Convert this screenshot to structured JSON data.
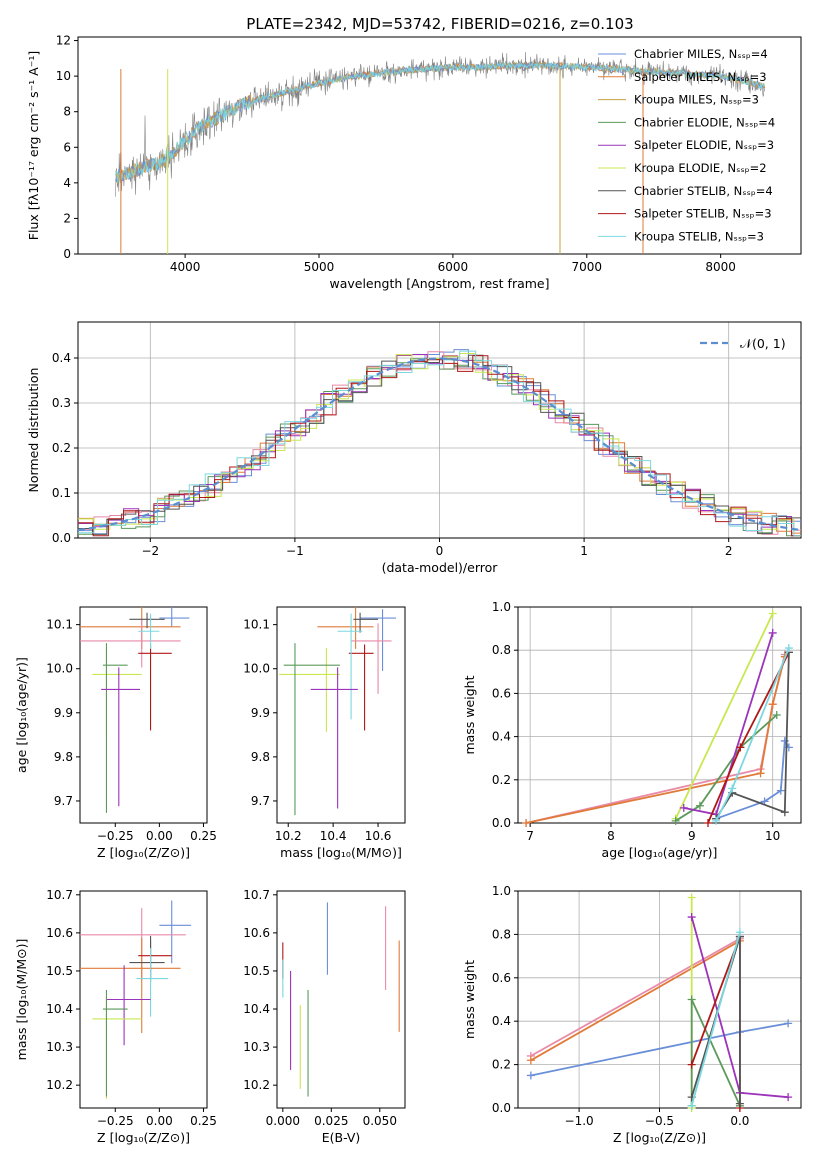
{
  "colors": {
    "chabrier_miles": "#6a8fd8",
    "salpeter_miles": "#e07b39",
    "kroupa_miles": "#c8a040",
    "chabrier_elodie": "#5b9a5b",
    "salpeter_elodie": "#9b33bb",
    "kroupa_elodie": "#c8e850",
    "chabrier_stelib": "#555555",
    "salpeter_stelib": "#b01818",
    "kroupa_stelib": "#7bd8e0",
    "pink": "#e88aa8",
    "gaussian": "#5a8ed0",
    "grid": "#b0b0b0"
  },
  "chart_data": [
    {
      "id": "spectrum",
      "type": "line",
      "title": "PLATE=2342, MJD=53742, FIBERID=0216, z=0.103",
      "xlabel": "wavelength [Angstrom, rest frame]",
      "ylabel": "Flux [fλ10⁻¹⁷ erg cm⁻² s⁻¹ A⁻¹]",
      "xlim": [
        3200,
        8600
      ],
      "ylim": [
        0,
        12.2
      ],
      "xticks": [
        "4000",
        "5000",
        "6000",
        "7000",
        "8000"
      ],
      "yticks": [
        "0",
        "2",
        "4",
        "6",
        "8",
        "10",
        "12"
      ],
      "grid": false,
      "legend_position": "right",
      "continuum_x": [
        3480,
        3600,
        3700,
        3800,
        3900,
        4000,
        4100,
        4200,
        4300,
        4400,
        4500,
        4600,
        4800,
        5000,
        5200,
        5400,
        5600,
        5800,
        6000,
        6200,
        6400,
        6600,
        6800,
        7000,
        7200,
        7400,
        7600,
        7800,
        8000,
        8200,
        8330
      ],
      "continuum_y": [
        4.3,
        4.6,
        4.9,
        5.1,
        5.6,
        6.4,
        7.1,
        7.5,
        7.9,
        8.3,
        8.6,
        8.8,
        9.2,
        9.6,
        9.9,
        10.1,
        10.3,
        10.4,
        10.5,
        10.5,
        10.6,
        10.6,
        10.6,
        10.5,
        10.4,
        10.3,
        10.2,
        10.1,
        10.0,
        9.7,
        9.4
      ],
      "legend": [
        {
          "name": "Chabrier MILES, N_SSP=4",
          "key": "chabrier_miles"
        },
        {
          "name": "Salpeter MILES, N_SSP=3",
          "key": "salpeter_miles"
        },
        {
          "name": "Kroupa MILES, N_SSP=3",
          "key": "kroupa_miles"
        },
        {
          "name": "Chabrier ELODIE, N_SSP=4",
          "key": "chabrier_elodie"
        },
        {
          "name": "Salpeter ELODIE, N_SSP=3",
          "key": "salpeter_elodie"
        },
        {
          "name": "Kroupa ELODIE, N_SSP=2",
          "key": "kroupa_elodie"
        },
        {
          "name": "Chabrier STELIB, N_SSP=4",
          "key": "chabrier_stelib"
        },
        {
          "name": "Salpeter STELIB, N_SSP=3",
          "key": "salpeter_stelib"
        },
        {
          "name": "Kroupa STELIB, N_SSP=3",
          "key": "kroupa_stelib"
        }
      ]
    },
    {
      "id": "residuals",
      "type": "histogram",
      "xlabel": "(data-model)/error",
      "ylabel": "Normed distribution",
      "xlim": [
        -2.5,
        2.5
      ],
      "ylim": [
        0,
        0.48
      ],
      "xticks": [
        "−2",
        "−1",
        "0",
        "1",
        "2"
      ],
      "yticks": [
        "0.0",
        "0.1",
        "0.2",
        "0.3",
        "0.4"
      ],
      "grid": true,
      "legend_position": "top-right",
      "gaussian_label": "𝒩(0, 1)"
    },
    {
      "id": "age_vs_z",
      "type": "errorbar",
      "xlabel": "Z [log₁₀(Z/Z⊙)]",
      "ylabel": "age  [log₁₀(age/yr)]",
      "xlim": [
        -0.45,
        0.27
      ],
      "ylim": [
        9.65,
        10.14
      ],
      "xticks": [
        "−0.25",
        "0.00",
        "0.25"
      ],
      "yticks": [
        "9.7",
        "9.8",
        "9.9",
        "10.0",
        "10.1"
      ],
      "points": [
        {
          "k": "chabrier_miles",
          "x": 0.07,
          "xe": [
            0.07,
            0.1
          ],
          "y": 10.115,
          "ye": [
            0.02,
            0.025
          ]
        },
        {
          "k": "salpeter_miles",
          "x": -0.1,
          "xe": [
            0.35,
            0.22
          ],
          "y": 10.095,
          "ye": [
            0.05,
            0.045
          ]
        },
        {
          "k": "pink",
          "x": -0.1,
          "xe": [
            0.35,
            0.22
          ],
          "y": 10.063,
          "ye": [
            0.06,
            0.05
          ]
        },
        {
          "k": "chabrier_stelib",
          "x": -0.07,
          "xe": [
            0.1,
            0.1
          ],
          "y": 10.112,
          "ye": [
            0.02,
            0.015
          ]
        },
        {
          "k": "salpeter_stelib",
          "x": -0.05,
          "xe": [
            0.07,
            0.12
          ],
          "y": 10.035,
          "ye": [
            0.175,
            0.02
          ]
        },
        {
          "k": "kroupa_stelib",
          "x": -0.05,
          "xe": [
            0.07,
            0.05
          ],
          "y": 10.085,
          "ye": [
            0.04,
            0.04
          ]
        },
        {
          "k": "kroupa_elodie",
          "x": -0.3,
          "xe": [
            0.08,
            0.2
          ],
          "y": 9.987,
          "ye": [
            0.14,
            0.06
          ]
        },
        {
          "k": "chabrier_elodie",
          "x": -0.3,
          "xe": [
            0.02,
            0.12
          ],
          "y": 10.008,
          "ye": [
            0.335,
            0.05
          ]
        },
        {
          "k": "salpeter_elodie",
          "x": -0.23,
          "xe": [
            0.1,
            0.12
          ],
          "y": 9.953,
          "ye": [
            0.265,
            0.05
          ]
        }
      ]
    },
    {
      "id": "age_vs_mass",
      "type": "errorbar",
      "xlabel": "mass [log₁₀(M/M⊙)]",
      "ylabel": "",
      "xlim": [
        10.15,
        10.72
      ],
      "ylim": [
        9.65,
        10.14
      ],
      "xticks": [
        "10.2",
        "10.4",
        "10.6"
      ],
      "yticks": [
        "9.7",
        "9.8",
        "9.9",
        "10.0",
        "10.1"
      ],
      "points": [
        {
          "k": "chabrier_miles",
          "x": 10.62,
          "xe": [
            0.1,
            0.06
          ],
          "y": 10.115,
          "ye": [
            0.12,
            0.02
          ]
        },
        {
          "k": "salpeter_miles",
          "x": 10.5,
          "xe": [
            0.17,
            0.08
          ],
          "y": 10.095,
          "ye": [
            0.05,
            0.045
          ]
        },
        {
          "k": "pink",
          "x": 10.6,
          "xe": [
            0.12,
            0.06
          ],
          "y": 10.063,
          "ye": [
            0.12,
            0.04
          ]
        },
        {
          "k": "chabrier_stelib",
          "x": 10.52,
          "xe": [
            0.03,
            0.08
          ],
          "y": 10.112,
          "ye": [
            0.03,
            0.015
          ]
        },
        {
          "k": "salpeter_stelib",
          "x": 10.54,
          "xe": [
            0.07,
            0.04
          ],
          "y": 10.035,
          "ye": [
            0.175,
            0.02
          ]
        },
        {
          "k": "kroupa_stelib",
          "x": 10.48,
          "xe": [
            0.06,
            0.05
          ],
          "y": 10.085,
          "ye": [
            0.2,
            0.04
          ]
        },
        {
          "k": "kroupa_elodie",
          "x": 10.37,
          "xe": [
            0.21,
            0.06
          ],
          "y": 9.987,
          "ye": [
            0.13,
            0.06
          ]
        },
        {
          "k": "chabrier_elodie",
          "x": 10.23,
          "xe": [
            0.05,
            0.2
          ],
          "y": 10.008,
          "ye": [
            0.34,
            0.05
          ]
        },
        {
          "k": "salpeter_elodie",
          "x": 10.42,
          "xe": [
            0.12,
            0.09
          ],
          "y": 9.953,
          "ye": [
            0.27,
            0.05
          ]
        }
      ]
    },
    {
      "id": "weight_vs_age",
      "type": "line",
      "xlabel": "age  [log₁₀(age/yr)]",
      "ylabel": "mass weight",
      "xlim": [
        6.85,
        10.35
      ],
      "ylim": [
        0,
        1
      ],
      "xticks": [
        "7",
        "8",
        "9",
        "10"
      ],
      "yticks": [
        "0.0",
        "0.2",
        "0.4",
        "0.6",
        "0.8",
        "1.0"
      ],
      "grid": true,
      "series": [
        {
          "k": "pink",
          "x": [
            6.95,
            9.85,
            10.0,
            10.15
          ],
          "y": [
            0.0,
            0.25,
            0.55,
            0.78
          ]
        },
        {
          "k": "salpeter_miles",
          "x": [
            6.95,
            9.85,
            10.0,
            10.15
          ],
          "y": [
            0.0,
            0.23,
            0.55,
            0.77
          ]
        },
        {
          "k": "chabrier_miles",
          "x": [
            9.3,
            9.9,
            10.1,
            10.15,
            10.2
          ],
          "y": [
            0.02,
            0.1,
            0.15,
            0.38,
            0.35
          ]
        },
        {
          "k": "kroupa_elodie",
          "x": [
            8.8,
            10.0
          ],
          "y": [
            0.02,
            0.97
          ]
        },
        {
          "k": "chabrier_elodie",
          "x": [
            8.8,
            9.1,
            9.6,
            10.05
          ],
          "y": [
            0.01,
            0.08,
            0.35,
            0.5
          ]
        },
        {
          "k": "salpeter_elodie",
          "x": [
            8.9,
            9.3,
            10.0
          ],
          "y": [
            0.07,
            0.04,
            0.88
          ]
        },
        {
          "k": "salpeter_stelib",
          "x": [
            9.2,
            9.6,
            10.2
          ],
          "y": [
            0.0,
            0.35,
            0.79
          ]
        },
        {
          "k": "chabrier_stelib",
          "x": [
            9.3,
            9.5,
            10.15,
            10.2
          ],
          "y": [
            0.02,
            0.14,
            0.05,
            0.79
          ]
        },
        {
          "k": "kroupa_stelib",
          "x": [
            9.3,
            9.5,
            10.2
          ],
          "y": [
            0.01,
            0.16,
            0.81
          ]
        }
      ]
    },
    {
      "id": "mass_vs_z",
      "type": "errorbar",
      "xlabel": "Z [log₁₀(Z/Z⊙)]",
      "ylabel": "mass [log₁₀(M/M⊙)]",
      "xlim": [
        -0.45,
        0.27
      ],
      "ylim": [
        10.14,
        10.71
      ],
      "xticks": [
        "−0.25",
        "0.00",
        "0.25"
      ],
      "yticks": [
        "10.2",
        "10.3",
        "10.4",
        "10.5",
        "10.6",
        "10.7"
      ],
      "points": [
        {
          "k": "chabrier_miles",
          "x": 0.07,
          "xe": [
            0.07,
            0.11
          ],
          "y": 10.62,
          "ye": [
            0.1,
            0.065
          ]
        },
        {
          "k": "pink",
          "x": -0.1,
          "xe": [
            0.35,
            0.25
          ],
          "y": 10.595,
          "ye": [
            0.12,
            0.07
          ]
        },
        {
          "k": "salpeter_miles",
          "x": -0.1,
          "xe": [
            0.35,
            0.22
          ],
          "y": 10.507,
          "ye": [
            0.17,
            0.08
          ]
        },
        {
          "k": "salpeter_stelib",
          "x": -0.05,
          "xe": [
            0.07,
            0.12
          ],
          "y": 10.54,
          "ye": [
            0.07,
            0.04
          ]
        },
        {
          "k": "chabrier_stelib",
          "x": -0.05,
          "xe": [
            0.12,
            0.08
          ],
          "y": 10.522,
          "ye": [
            0.04,
            0.07
          ]
        },
        {
          "k": "kroupa_stelib",
          "x": -0.05,
          "xe": [
            0.08,
            0.1
          ],
          "y": 10.48,
          "ye": [
            0.1,
            0.08
          ]
        },
        {
          "k": "salpeter_elodie",
          "x": -0.2,
          "xe": [
            0.1,
            0.15
          ],
          "y": 10.425,
          "ye": [
            0.12,
            0.09
          ]
        },
        {
          "k": "kroupa_elodie",
          "x": -0.3,
          "xe": [
            0.08,
            0.2
          ],
          "y": 10.374,
          "ye": [
            0.21,
            0.06
          ]
        },
        {
          "k": "chabrier_elodie",
          "x": -0.3,
          "xe": [
            0.02,
            0.12
          ],
          "y": 10.4,
          "ye": [
            0.23,
            0.05
          ]
        }
      ]
    },
    {
      "id": "mass_vs_ebv",
      "type": "errorbar",
      "xlabel": "E(B-V)",
      "ylabel": "",
      "xlim": [
        -0.003,
        0.063
      ],
      "ylim": [
        10.14,
        10.71
      ],
      "xticks": [
        "0.000",
        "0.025",
        "0.050"
      ],
      "yticks": [
        "10.2",
        "10.3",
        "10.4",
        "10.5",
        "10.6",
        "10.7"
      ],
      "points": [
        {
          "k": "salpeter_stelib",
          "y": 10.54,
          "x": 0.0,
          "ye": [
            0.06,
            0.035
          ]
        },
        {
          "k": "chabrier_miles",
          "y": 10.59,
          "x": 0.023,
          "ye": [
            0.1,
            0.09
          ]
        },
        {
          "k": "pink",
          "y": 10.56,
          "x": 0.053,
          "ye": [
            0.11,
            0.11
          ]
        },
        {
          "k": "salpeter_miles",
          "y": 10.46,
          "x": 0.06,
          "ye": [
            0.12,
            0.12
          ]
        },
        {
          "k": "salpeter_elodie",
          "y": 10.38,
          "x": 0.004,
          "ye": [
            0.14,
            0.12
          ]
        },
        {
          "k": "kroupa_elodie",
          "y": 10.3,
          "x": 0.009,
          "ye": [
            0.11,
            0.11
          ]
        },
        {
          "k": "chabrier_elodie",
          "y": 10.31,
          "x": 0.013,
          "ye": [
            0.14,
            0.14
          ]
        },
        {
          "k": "kroupa_stelib",
          "y": 10.48,
          "x": 0.0,
          "ye": [
            0.05,
            0.05
          ]
        }
      ]
    },
    {
      "id": "weight_vs_z",
      "type": "line",
      "xlabel": "Z [log₁₀(Z/Z⊙)]",
      "ylabel": "mass weight",
      "xlim": [
        -1.38,
        0.38
      ],
      "ylim": [
        0,
        1
      ],
      "xticks": [
        "−1.0",
        "−0.5",
        "0.0"
      ],
      "yticks": [
        "0.0",
        "0.2",
        "0.4",
        "0.6",
        "0.8",
        "1.0"
      ],
      "grid": true,
      "series": [
        {
          "k": "chabrier_miles",
          "x": [
            -1.3,
            0.0,
            0.3
          ],
          "y": [
            0.15,
            0.35,
            0.39
          ]
        },
        {
          "k": "pink",
          "x": [
            -1.3,
            0.0
          ],
          "y": [
            0.24,
            0.78
          ]
        },
        {
          "k": "salpeter_miles",
          "x": [
            -1.3,
            0.0
          ],
          "y": [
            0.22,
            0.77
          ]
        },
        {
          "k": "kroupa_elodie",
          "x": [
            -0.3,
            -0.3
          ],
          "y": [
            0.0,
            0.97
          ]
        },
        {
          "k": "salpeter_elodie",
          "x": [
            -0.3,
            0.0,
            0.3
          ],
          "y": [
            0.88,
            0.07,
            0.05
          ]
        },
        {
          "k": "chabrier_elodie",
          "x": [
            -0.3,
            -0.3,
            0.0
          ],
          "y": [
            0.01,
            0.5,
            0.01
          ]
        },
        {
          "k": "salpeter_stelib",
          "x": [
            -0.3,
            0.0,
            0.0
          ],
          "y": [
            0.2,
            0.79,
            0.0
          ]
        },
        {
          "k": "chabrier_stelib",
          "x": [
            -0.3,
            0.0,
            0.0
          ],
          "y": [
            0.05,
            0.79,
            0.02
          ]
        },
        {
          "k": "kroupa_stelib",
          "x": [
            -0.3,
            0.0
          ],
          "y": [
            0.01,
            0.81
          ]
        }
      ]
    }
  ]
}
